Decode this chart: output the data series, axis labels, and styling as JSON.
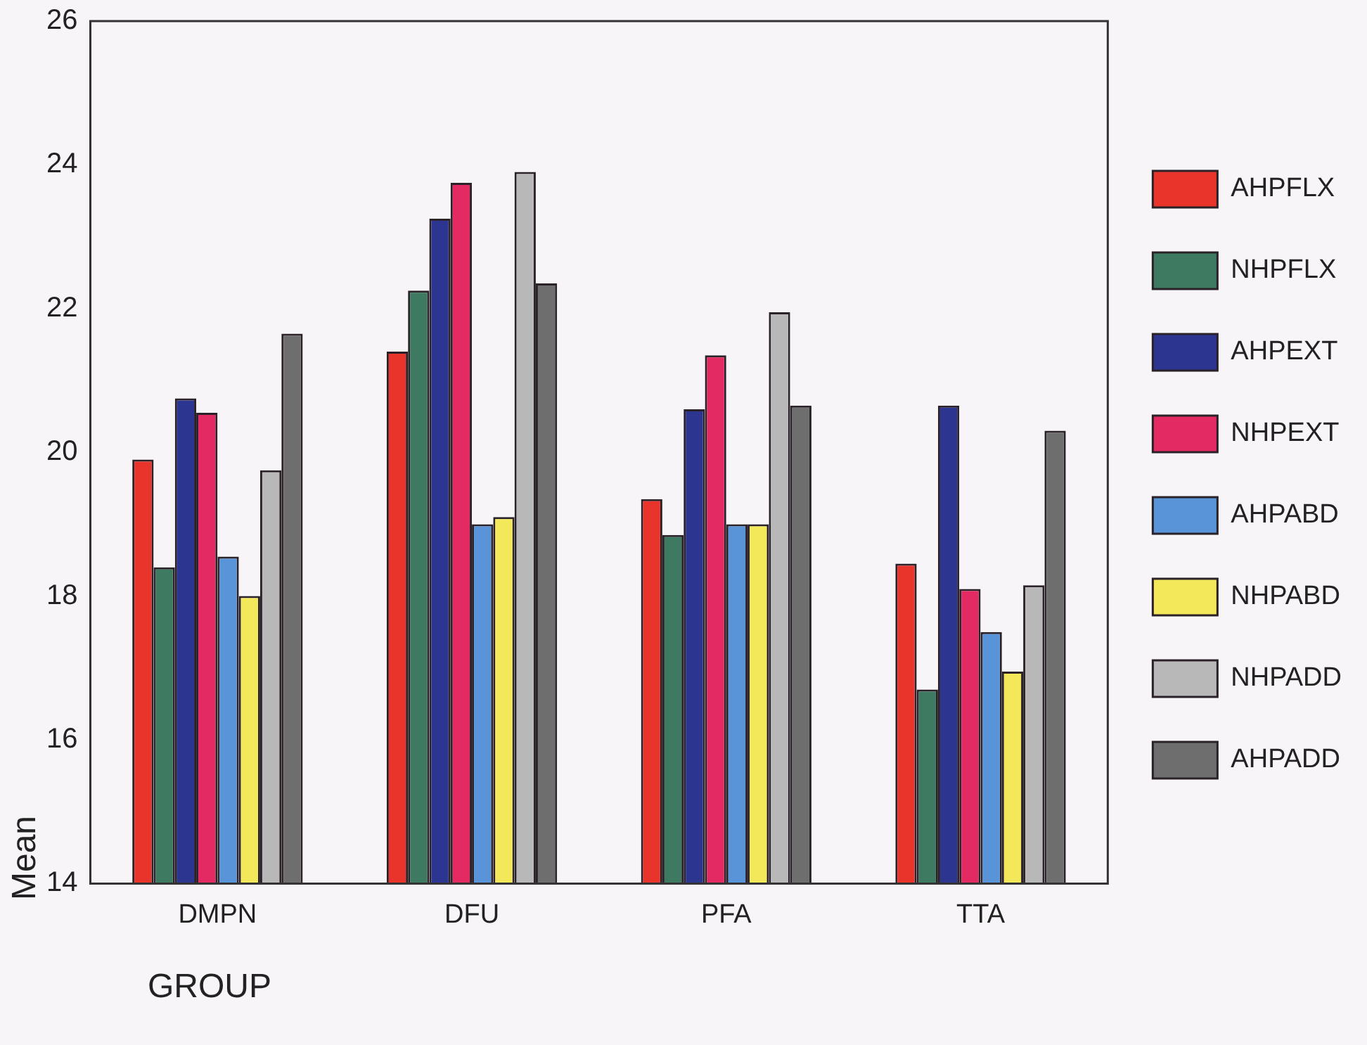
{
  "chart_data": {
    "type": "bar",
    "xlabel": "GROUP",
    "ylabel": "Mean",
    "categories": [
      "DMPN",
      "DFU",
      "PFA",
      "TTA"
    ],
    "series": [
      {
        "name": "AHPFLX",
        "color": "#e8342a",
        "values": [
          19.9,
          21.4,
          19.35,
          18.45
        ]
      },
      {
        "name": "NHPFLX",
        "color": "#3e7a62",
        "values": [
          18.4,
          22.25,
          18.85,
          16.7
        ]
      },
      {
        "name": "AHPEXT",
        "color": "#2c3590",
        "values": [
          20.75,
          23.25,
          20.6,
          20.65
        ]
      },
      {
        "name": "NHPEXT",
        "color": "#e42a62",
        "values": [
          20.55,
          23.75,
          21.35,
          18.1
        ]
      },
      {
        "name": "AHPABD",
        "color": "#5a94d8",
        "values": [
          18.55,
          19.0,
          19.0,
          17.5
        ]
      },
      {
        "name": "NHPABD",
        "color": "#f2e85a",
        "values": [
          18.0,
          19.1,
          19.0,
          16.95
        ]
      },
      {
        "name": "NHPADD",
        "color": "#b8b8b8",
        "values": [
          19.75,
          23.9,
          21.95,
          18.15
        ]
      },
      {
        "name": "AHPADD",
        "color": "#6e6e6e",
        "values": [
          21.65,
          22.35,
          20.65,
          20.3
        ]
      }
    ],
    "ylim": [
      14,
      26
    ],
    "yticks": [
      14,
      16,
      18,
      20,
      22,
      24,
      26
    ],
    "grid": false,
    "legend": "right"
  }
}
